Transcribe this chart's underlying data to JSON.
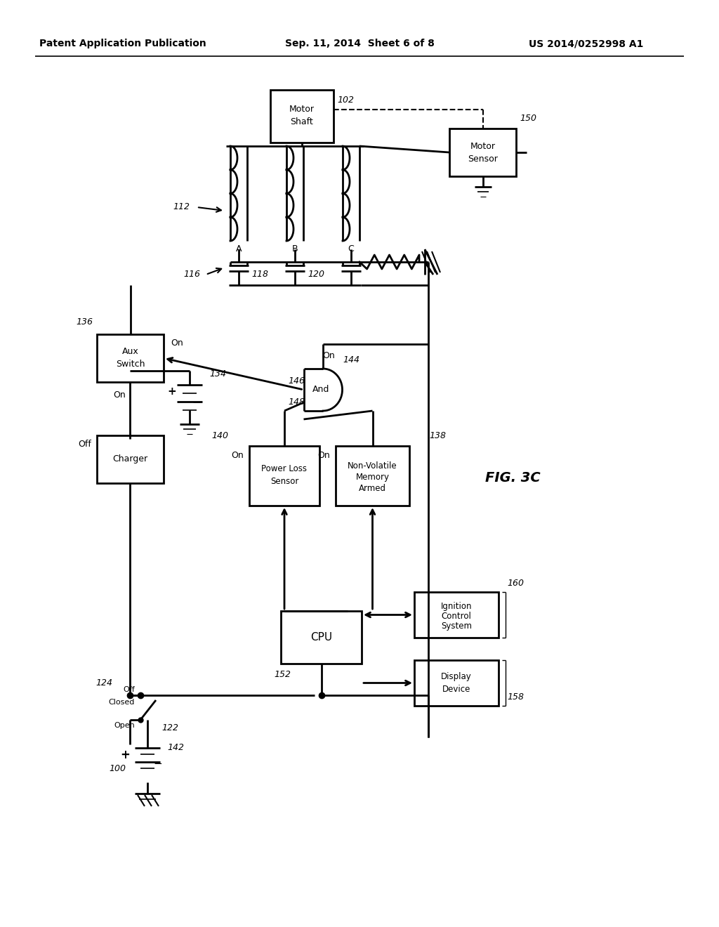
{
  "background_color": "#ffffff",
  "line_color": "#000000",
  "text_color": "#000000",
  "header_left": "Patent Application Publication",
  "header_center": "Sep. 11, 2014  Sheet 6 of 8",
  "header_right": "US 2014/0252998 A1",
  "fig_label": "FIG. 3C"
}
